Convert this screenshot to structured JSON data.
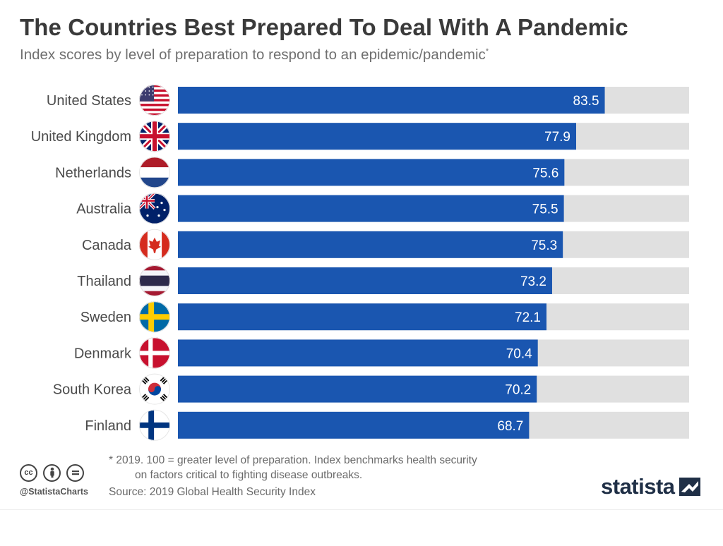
{
  "title": "The Countries Best Prepared To Deal With A Pandemic",
  "subtitle": "Index scores by level of preparation to respond to an epidemic/pandemic",
  "subtitle_marker": "*",
  "footnote": {
    "line1": "* 2019. 100 = greater level of preparation. Index benchmarks health security",
    "line2": "on factors critical to fighting disease outbreaks."
  },
  "source": "Source: 2019 Global Health Security Index",
  "social_handle": "@StatistaCharts",
  "brand": "statista",
  "cc_icons": [
    "cc-icon",
    "by-icon",
    "nd-icon"
  ],
  "colors": {
    "bar": "#1a56b0",
    "track": "#e0e0e0",
    "label": "#4a4a4a",
    "value": "#ffffff"
  },
  "chart_data": {
    "type": "bar",
    "orientation": "horizontal",
    "categories": [
      "United States",
      "United Kingdom",
      "Netherlands",
      "Australia",
      "Canada",
      "Thailand",
      "Sweden",
      "Denmark",
      "South Korea",
      "Finland"
    ],
    "values": [
      83.5,
      77.9,
      75.6,
      75.5,
      75.3,
      73.2,
      72.1,
      70.4,
      70.2,
      68.7
    ],
    "value_labels": [
      "83.5",
      "77.9",
      "75.6",
      "75.5",
      "75.3",
      "73.2",
      "72.1",
      "70.4",
      "70.2",
      "68.7"
    ],
    "flags": [
      "us-flag-icon",
      "uk-flag-icon",
      "netherlands-flag-icon",
      "australia-flag-icon",
      "canada-flag-icon",
      "thailand-flag-icon",
      "sweden-flag-icon",
      "denmark-flag-icon",
      "south-korea-flag-icon",
      "finland-flag-icon"
    ],
    "xlim": [
      0,
      100
    ],
    "grid": false,
    "legend": "none"
  }
}
